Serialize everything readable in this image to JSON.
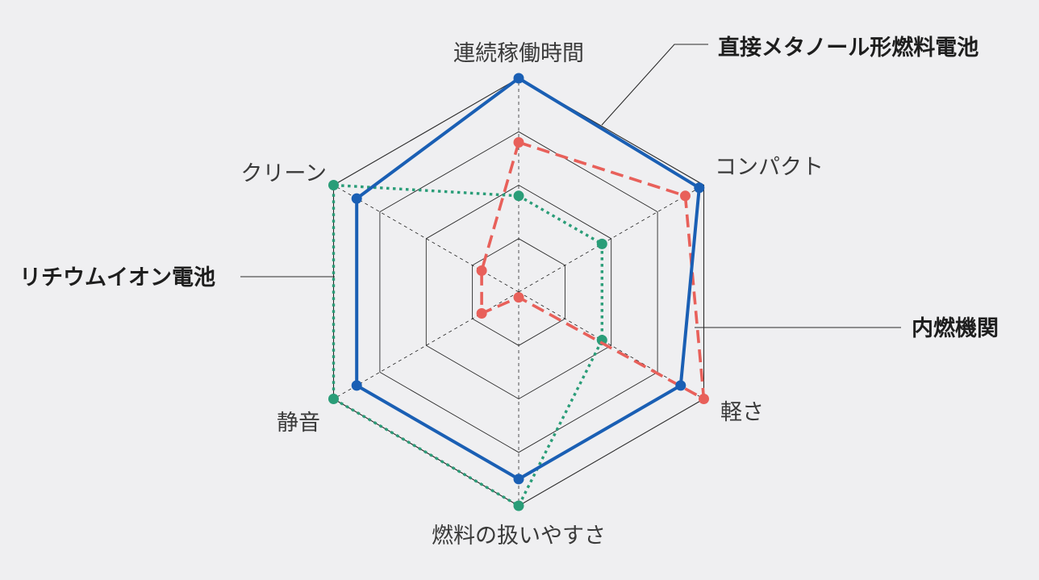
{
  "chart_data": {
    "type": "radar",
    "axes": [
      "連続稼働時間",
      "コンパクト",
      "軽さ",
      "燃料の扱いやすさ",
      "静音",
      "クリーン"
    ],
    "range": [
      0,
      4
    ],
    "levels": 4,
    "series": [
      {
        "name": "直接メタノール形燃料電池",
        "color": "#1a5fb4",
        "line_style": "solid",
        "values": [
          4.0,
          3.9,
          3.5,
          3.5,
          3.5,
          3.5
        ]
      },
      {
        "name": "内燃機関",
        "color": "#e8605a",
        "line_style": "dashed",
        "values": [
          2.8,
          3.6,
          4.0,
          0.1,
          0.8,
          0.8
        ]
      },
      {
        "name": "リチウムイオン電池",
        "color": "#2a9d78",
        "line_style": "dotted",
        "values": [
          1.8,
          1.8,
          1.8,
          4.0,
          4.0,
          4.0
        ]
      }
    ]
  }
}
